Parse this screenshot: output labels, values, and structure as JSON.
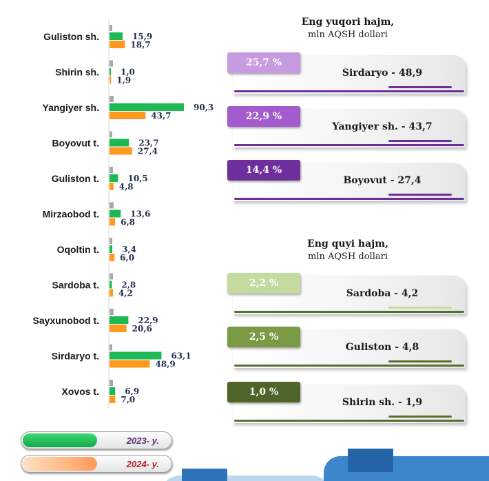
{
  "chart_data": {
    "type": "bar",
    "orientation": "horizontal",
    "categories": [
      "Guliston sh.",
      "Shirin sh.",
      "Yangiyer sh.",
      "Boyovut t.",
      "Guliston t.",
      "Mirzaobod t.",
      "Oqoltin t.",
      "Sardoba t.",
      "Sayxunobod t.",
      "Sirdaryo t.",
      "Xovos t."
    ],
    "series": [
      {
        "name": "2023- y.",
        "color": "#1db954",
        "values": [
          15.9,
          1.0,
          90.3,
          23.7,
          10.5,
          13.6,
          3.4,
          2.8,
          22.9,
          63.1,
          6.9
        ],
        "labels": [
          "15,9",
          "1,0",
          "90,3",
          "23,7",
          "10,5",
          "13,6",
          "3,4",
          "2,8",
          "22,9",
          "63,1",
          "6,9"
        ]
      },
      {
        "name": "2024- y.",
        "color": "#ff9a1f",
        "values": [
          18.7,
          1.9,
          43.7,
          27.4,
          4.8,
          6.8,
          6.0,
          4.2,
          20.6,
          48.9,
          7.0
        ],
        "labels": [
          "18,7",
          "1,9",
          "43,7",
          "27,4",
          "4,8",
          "6,8",
          "6,0",
          "4,2",
          "20,6",
          "48,9",
          "7,0"
        ]
      }
    ],
    "legend": "bottom-left"
  },
  "legend": {
    "y2023": {
      "label": "2023- y.",
      "color": "#1db954",
      "text_color": "#5a2a72"
    },
    "y2024": {
      "label": "2024- y.",
      "color": "#ff9a57",
      "text_color": "#b3262b"
    }
  },
  "top_panel": {
    "heading_line1": "Eng yuqori hajm,",
    "heading_line2": "mln AQSH dollari",
    "cards": [
      {
        "percent": "25,7 %",
        "text": "Sirdaryo - 48,9",
        "color": "#c79be0",
        "line_color": "#6a2f98"
      },
      {
        "percent": "22,9 %",
        "text": "Yangiyer sh. - 43,7",
        "color": "#a35ccd",
        "line_color": "#6a2f98"
      },
      {
        "percent": "14,4 %",
        "text": "Boyovut  - 27,4",
        "color": "#6e2e9c",
        "line_color": "#6a2f98"
      }
    ]
  },
  "bottom_panel": {
    "heading_line1": "Eng quyi hajm,",
    "heading_line2": "mln AQSH dollari",
    "cards": [
      {
        "percent": "2,2 %",
        "text": "Sardoba -  4,2",
        "color": "#c4dba0",
        "line_color": "#55702e"
      },
      {
        "percent": "2,5 %",
        "text": "Guliston - 4,8",
        "color": "#7a9a45",
        "line_color": "#55702e"
      },
      {
        "percent": "1,0 %",
        "text": "Shirin sh. - 1,9",
        "color": "#4f6428",
        "line_color": "#55702e"
      }
    ]
  }
}
